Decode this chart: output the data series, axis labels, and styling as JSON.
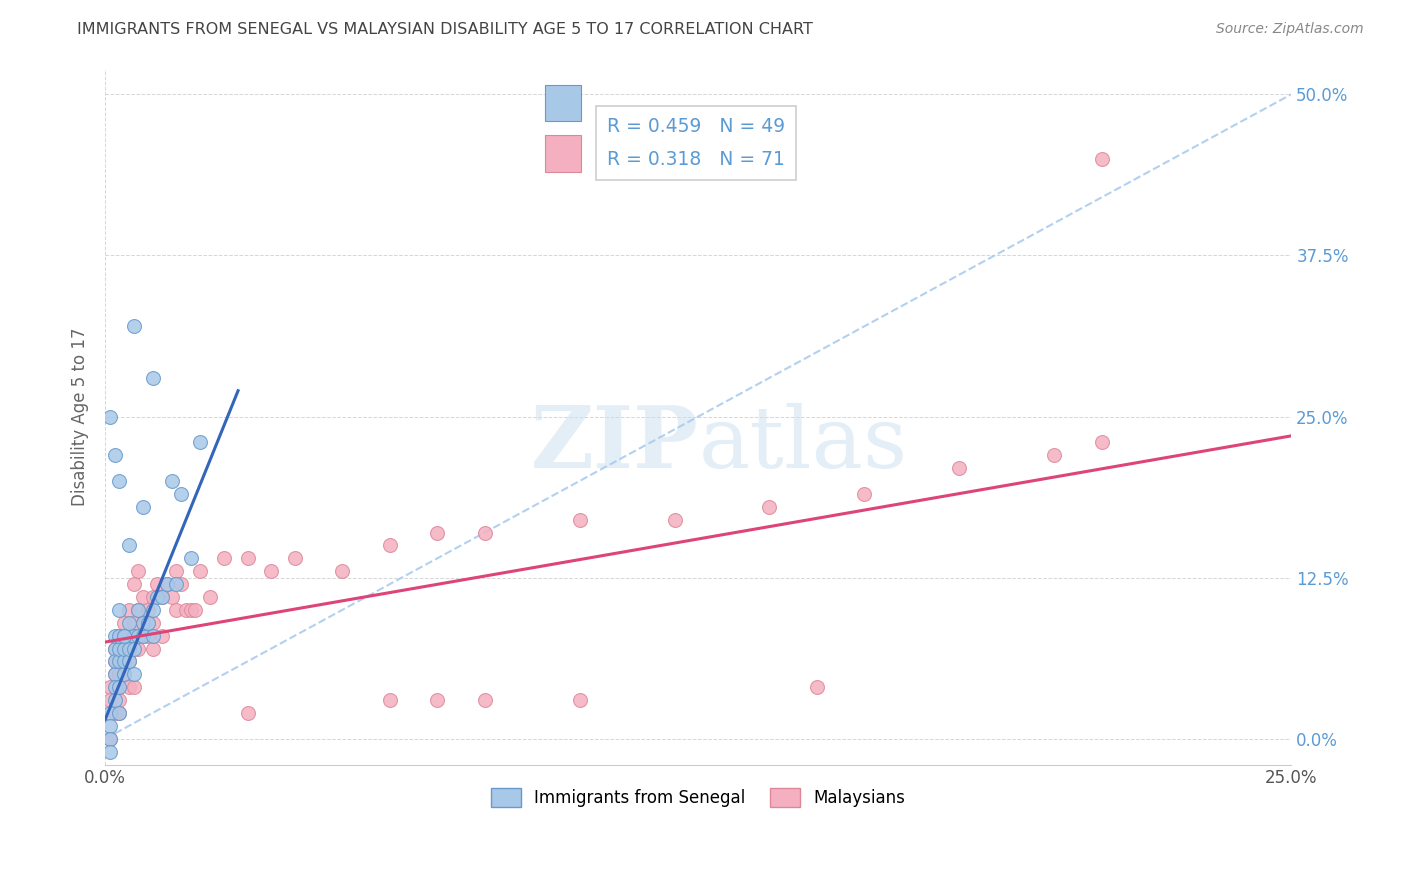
{
  "title": "IMMIGRANTS FROM SENEGAL VS MALAYSIAN DISABILITY AGE 5 TO 17 CORRELATION CHART",
  "source": "Source: ZipAtlas.com",
  "ylabel": "Disability Age 5 to 17",
  "xlim": [
    0.0,
    0.25
  ],
  "ylim": [
    -0.02,
    0.52
  ],
  "ytick_labels": [
    "0.0%",
    "12.5%",
    "25.0%",
    "37.5%",
    "50.0%"
  ],
  "ytick_values": [
    0.0,
    0.125,
    0.25,
    0.375,
    0.5
  ],
  "xtick_labels": [
    "0.0%",
    "25.0%"
  ],
  "xtick_values": [
    0.0,
    0.25
  ],
  "watermark_zip": "ZIP",
  "watermark_atlas": "atlas",
  "background_color": "#ffffff",
  "grid_color": "#cccccc",
  "title_color": "#444444",
  "source_color": "#888888",
  "ytick_color": "#5b9bd5",
  "xtick_color": "#555555",
  "blue_scatter_x": [
    0.001,
    0.001,
    0.001,
    0.001,
    0.002,
    0.002,
    0.002,
    0.002,
    0.002,
    0.002,
    0.003,
    0.003,
    0.003,
    0.003,
    0.003,
    0.004,
    0.004,
    0.004,
    0.004,
    0.005,
    0.005,
    0.005,
    0.006,
    0.006,
    0.006,
    0.007,
    0.007,
    0.008,
    0.008,
    0.009,
    0.01,
    0.01,
    0.011,
    0.012,
    0.013,
    0.014,
    0.015,
    0.016,
    0.018,
    0.02,
    0.001,
    0.002,
    0.003,
    0.003,
    0.004,
    0.005,
    0.006,
    0.008,
    0.01
  ],
  "blue_scatter_y": [
    0.02,
    0.01,
    0.0,
    -0.01,
    0.05,
    0.04,
    0.07,
    0.03,
    0.06,
    0.08,
    0.04,
    0.06,
    0.07,
    0.02,
    0.08,
    0.05,
    0.06,
    0.08,
    0.07,
    0.06,
    0.07,
    0.09,
    0.05,
    0.08,
    0.07,
    0.08,
    0.1,
    0.08,
    0.09,
    0.09,
    0.1,
    0.08,
    0.11,
    0.11,
    0.12,
    0.2,
    0.12,
    0.19,
    0.14,
    0.23,
    0.25,
    0.22,
    0.1,
    0.2,
    0.08,
    0.15,
    0.32,
    0.18,
    0.28
  ],
  "pink_scatter_x": [
    0.001,
    0.001,
    0.001,
    0.002,
    0.002,
    0.002,
    0.002,
    0.003,
    0.003,
    0.003,
    0.003,
    0.003,
    0.003,
    0.004,
    0.004,
    0.004,
    0.004,
    0.005,
    0.005,
    0.005,
    0.005,
    0.006,
    0.006,
    0.006,
    0.006,
    0.007,
    0.007,
    0.007,
    0.008,
    0.008,
    0.008,
    0.009,
    0.009,
    0.01,
    0.01,
    0.01,
    0.011,
    0.012,
    0.012,
    0.013,
    0.014,
    0.015,
    0.015,
    0.016,
    0.017,
    0.018,
    0.019,
    0.02,
    0.022,
    0.025,
    0.03,
    0.035,
    0.04,
    0.05,
    0.06,
    0.07,
    0.08,
    0.1,
    0.12,
    0.14,
    0.16,
    0.18,
    0.2,
    0.21,
    0.1,
    0.15,
    0.07,
    0.06,
    0.03,
    0.08,
    0.21
  ],
  "pink_scatter_y": [
    0.04,
    0.03,
    0.0,
    0.05,
    0.07,
    0.02,
    0.06,
    0.06,
    0.05,
    0.03,
    0.08,
    0.04,
    0.02,
    0.07,
    0.09,
    0.05,
    0.08,
    0.07,
    0.06,
    0.1,
    0.04,
    0.09,
    0.12,
    0.08,
    0.04,
    0.1,
    0.07,
    0.13,
    0.09,
    0.11,
    0.08,
    0.1,
    0.08,
    0.11,
    0.09,
    0.07,
    0.12,
    0.11,
    0.08,
    0.12,
    0.11,
    0.13,
    0.1,
    0.12,
    0.1,
    0.1,
    0.1,
    0.13,
    0.11,
    0.14,
    0.14,
    0.13,
    0.14,
    0.13,
    0.15,
    0.16,
    0.16,
    0.17,
    0.17,
    0.18,
    0.19,
    0.21,
    0.22,
    0.23,
    0.03,
    0.04,
    0.03,
    0.03,
    0.02,
    0.03,
    0.45
  ],
  "blue_line_x0": 0.0,
  "blue_line_x1": 0.028,
  "blue_line_y0": 0.015,
  "blue_line_y1": 0.27,
  "pink_line_x0": 0.0,
  "pink_line_x1": 0.25,
  "pink_line_y0": 0.075,
  "pink_line_y1": 0.235,
  "diag_line_x0": 0.0,
  "diag_line_x1": 0.25,
  "diag_line_y0": 0.0,
  "diag_line_y1": 0.5,
  "blue_dot_color": "#a8c8e8",
  "blue_dot_edge": "#6699cc",
  "pink_dot_color": "#f4b0c0",
  "pink_dot_edge": "#dd8899",
  "blue_line_color": "#3366bb",
  "pink_line_color": "#dd4477",
  "diag_line_color": "#aaccee",
  "legend_R_color": "#5b9bd5",
  "legend_N_color": "#e05070"
}
